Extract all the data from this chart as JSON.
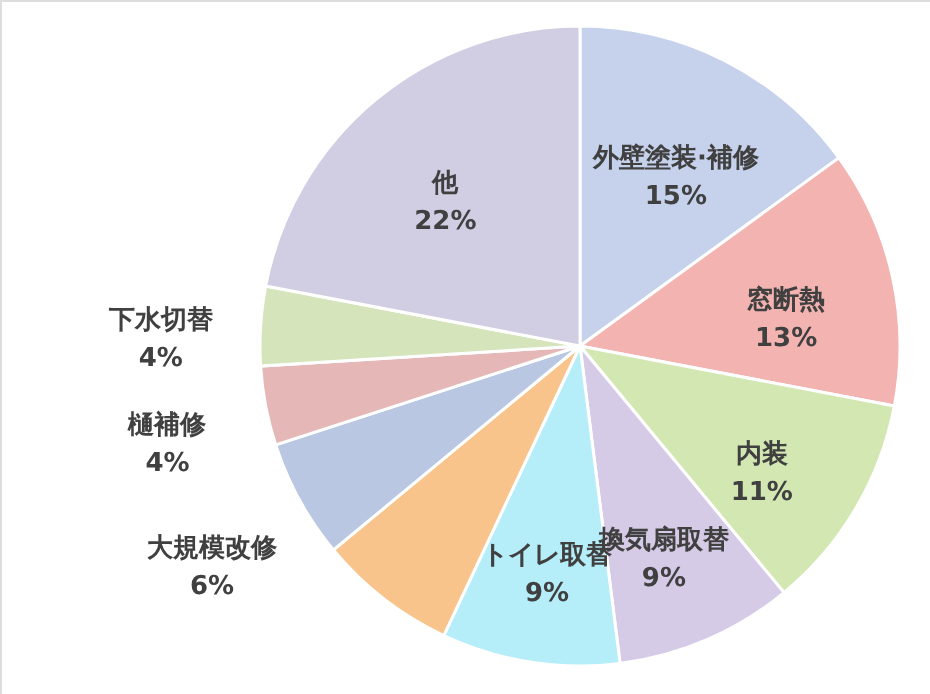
{
  "chart_data": {
    "type": "pie",
    "categories": [
      "外壁塗装·補修",
      "窓断熱",
      "内装",
      "換気扇取替",
      "トイレ取替",
      null,
      "大規模改修",
      "樋補修",
      "下水切替",
      "他"
    ],
    "values": [
      15,
      13,
      11,
      9,
      9,
      7,
      6,
      4,
      4,
      22
    ],
    "colors": [
      "#c6d2ec",
      "#f3b3b1",
      "#d3e7b3",
      "#d6cbe7",
      "#b5edf9",
      "#f8c48c",
      "#b9c7e2",
      "#e5b8b7",
      "#d6e4bb",
      "#d1cde2"
    ],
    "value_labels": [
      "15%",
      "13%",
      "11%",
      "9%",
      "9%",
      null,
      "6%",
      "4%",
      "4%",
      "22%"
    ]
  }
}
